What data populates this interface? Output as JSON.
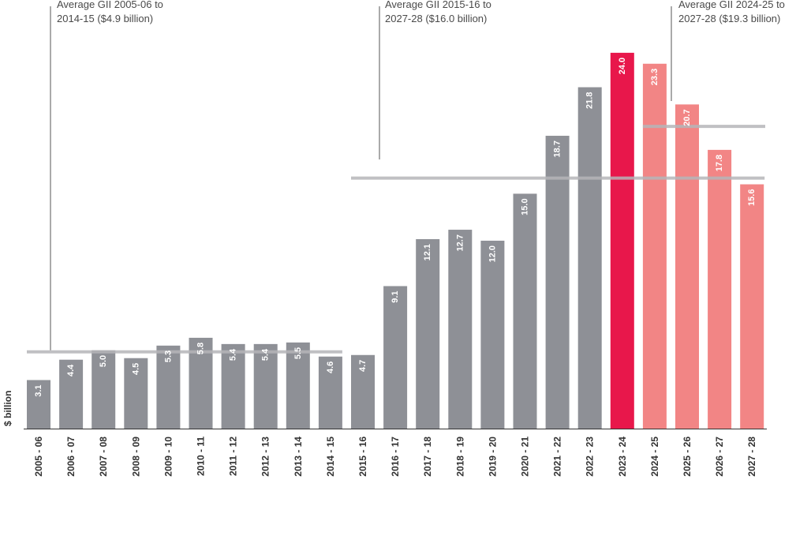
{
  "chart_data": {
    "type": "bar",
    "ylabel": "$ billion",
    "ylim": [
      0,
      24.8
    ],
    "categories": [
      "2005 - 06",
      "2006 - 07",
      "2007 - 08",
      "2008 - 09",
      "2009 - 10",
      "2010 - 11",
      "2011 - 12",
      "2012 - 13",
      "2013 - 14",
      "2014 - 15",
      "2015 - 16",
      "2016 - 17",
      "2017 - 18",
      "2018 - 19",
      "2019 - 20",
      "2020 - 21",
      "2021 - 22",
      "2022 - 23",
      "2023 - 24",
      "2024 - 25",
      "2025 - 26",
      "2026 - 27",
      "2027 - 28"
    ],
    "values": [
      3.1,
      4.4,
      5.0,
      4.5,
      5.3,
      5.8,
      5.4,
      5.4,
      5.5,
      4.6,
      4.7,
      9.1,
      12.1,
      12.7,
      12.0,
      15.0,
      18.7,
      21.8,
      24.0,
      23.3,
      20.7,
      17.8,
      15.6
    ],
    "value_labels": [
      "3.1",
      "4.4",
      "5.0",
      "4.5",
      "5.3",
      "5.8",
      "5.4",
      "5.4",
      "5.5",
      "4.6",
      "4.7",
      "9.1",
      "12.1",
      "12.7",
      "12.0",
      "15.0",
      "18.7",
      "21.8",
      "24.0",
      "23.3",
      "20.7",
      "17.8",
      "15.6"
    ],
    "bar_groups": [
      "actual",
      "actual",
      "actual",
      "actual",
      "actual",
      "actual",
      "actual",
      "actual",
      "actual",
      "actual",
      "actual",
      "actual",
      "actual",
      "actual",
      "actual",
      "actual",
      "actual",
      "actual",
      "current",
      "forecast",
      "forecast",
      "forecast",
      "forecast"
    ],
    "averages": [
      {
        "label_line1": "Average GII 2005-06 to",
        "label_line2": "2014-15 ($4.9 billion)",
        "value": 4.9,
        "from_index": 0,
        "to_index": 9
      },
      {
        "label_line1": "Average GII 2015-16 to",
        "label_line2": "2027-28 ($16.0 billion)",
        "value": 16.0,
        "from_index": 10,
        "to_index": 22
      },
      {
        "label_line1": "Average GII 2024-25 to",
        "label_line2": "2027-28 ($19.3 billion)",
        "value": 19.3,
        "from_index": 19,
        "to_index": 22
      }
    ],
    "colors": {
      "actual": "#8e9096",
      "current": "#e8174b",
      "forecast": "#f28585",
      "average_line": "#b5b5b8",
      "axis": "#333333",
      "value_label": "#ffffff",
      "tick_label": "#333333"
    }
  }
}
